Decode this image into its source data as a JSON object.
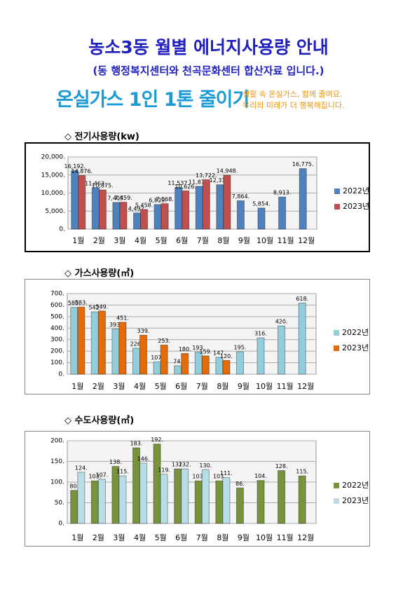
{
  "header": {
    "title": "농소3동 월별 에너지사용량 안내",
    "subtitle": "(동 행정복지센터와 천곡문화센터 합산자료 입니다.)",
    "banner": {
      "slogan": "온실가스 1인 1톤 줄이기",
      "line1": "생활 속 온실가스, 함께 줄여요.",
      "line2": "우리의 미래가 더 행복해집니다."
    }
  },
  "chart_data": [
    {
      "type": "bar",
      "title": "◇ 전기사용량(kw)",
      "categories": [
        "1월",
        "2월",
        "3월",
        "4월",
        "5월",
        "6월",
        "7월",
        "8월",
        "9월",
        "10월",
        "11월",
        "12월"
      ],
      "series": [
        {
          "name": "2022년",
          "color": "#4f81bd",
          "values": [
            16192,
            11463,
            7405,
            4492,
            6829,
            11537,
            11877,
            12310,
            7864,
            5854,
            8913,
            16775
          ],
          "value_labels": [
            "16,192.",
            "11,463.",
            "7,405.",
            "4,492.",
            "6,829.",
            "11,537.",
            "11,877.",
            "12,310.",
            "7,864.",
            "5,854.",
            "8,913.",
            "16,775."
          ]
        },
        {
          "name": "2023년",
          "color": "#c0504d",
          "values": [
            14876,
            10875,
            7459,
            5458,
            7068,
            10626,
            13722,
            14948,
            null,
            null,
            null,
            null
          ],
          "value_labels": [
            "14,876.",
            "10,875.",
            "7,459.",
            "5,458.",
            "7,068.",
            "10,626.",
            "13,722.",
            "14,948.",
            null,
            null,
            null,
            null
          ]
        }
      ],
      "ylim": [
        0,
        20000
      ],
      "yticks": [
        {
          "value": 0,
          "label": "0."
        },
        {
          "value": 5000,
          "label": "5,000."
        },
        {
          "value": 10000,
          "label": "10,000."
        },
        {
          "value": 15000,
          "label": "15,000."
        },
        {
          "value": 20000,
          "label": "20,000."
        }
      ],
      "grid": true,
      "legend": "right"
    },
    {
      "type": "bar",
      "title": "◇ 가스사용량(㎥)",
      "categories": [
        "1월",
        "2월",
        "3월",
        "4월",
        "5월",
        "6월",
        "7월",
        "8월",
        "9월",
        "10월",
        "11월",
        "12월"
      ],
      "series": [
        {
          "name": "2022년",
          "color": "#92cddc",
          "values": [
            580,
            542,
            393,
            226,
            107,
            74,
            193,
            147,
            195,
            316,
            420,
            618
          ],
          "value_labels": [
            "580.",
            "542.",
            "393.",
            "226.",
            "107.",
            "74.",
            "193.",
            "147.",
            "195.",
            "316.",
            "420.",
            "618."
          ]
        },
        {
          "name": "2023년",
          "color": "#e36c09",
          "values": [
            583,
            549,
            451,
            339,
            253,
            180,
            159,
            120,
            null,
            null,
            null,
            null
          ],
          "value_labels": [
            "583.",
            "549.",
            "451.",
            "339.",
            "253.",
            "180.",
            "159.",
            "120.",
            null,
            null,
            null,
            null
          ]
        }
      ],
      "ylim": [
        0,
        700
      ],
      "yticks": [
        {
          "value": 0,
          "label": "0."
        },
        {
          "value": 100,
          "label": "100."
        },
        {
          "value": 200,
          "label": "200."
        },
        {
          "value": 300,
          "label": "300."
        },
        {
          "value": 400,
          "label": "400."
        },
        {
          "value": 500,
          "label": "500."
        },
        {
          "value": 600,
          "label": "600."
        },
        {
          "value": 700,
          "label": "700."
        }
      ],
      "grid": true,
      "legend": "right"
    },
    {
      "type": "bar",
      "title": "◇ 수도사용량(㎥)",
      "categories": [
        "1월",
        "2월",
        "3월",
        "4월",
        "5월",
        "6월",
        "7월",
        "8월",
        "9월",
        "10월",
        "11월",
        "12월"
      ],
      "series": [
        {
          "name": "2022년",
          "color": "#77933c",
          "values": [
            80,
            103,
            138,
            183,
            192,
            132,
            103,
            103,
            86,
            104,
            128,
            115
          ],
          "value_labels": [
            "80.",
            "103.",
            "138.",
            "183.",
            "192.",
            "132.",
            "103.",
            "103.",
            "86.",
            "104.",
            "128.",
            "115."
          ]
        },
        {
          "name": "2023년",
          "color": "#b7dee8",
          "values": [
            124,
            107,
            115,
            146,
            119,
            132,
            130,
            111,
            null,
            null,
            null,
            null
          ],
          "value_labels": [
            "124.",
            "107.",
            "115.",
            "146.",
            "119.",
            "132.",
            "130.",
            "111.",
            null,
            null,
            null,
            null
          ]
        }
      ],
      "ylim": [
        0,
        200
      ],
      "yticks": [
        {
          "value": 0,
          "label": "0."
        },
        {
          "value": 50,
          "label": "50."
        },
        {
          "value": 100,
          "label": "100."
        },
        {
          "value": 150,
          "label": "150."
        },
        {
          "value": 200,
          "label": "200."
        }
      ],
      "grid": true,
      "legend": "right"
    }
  ]
}
